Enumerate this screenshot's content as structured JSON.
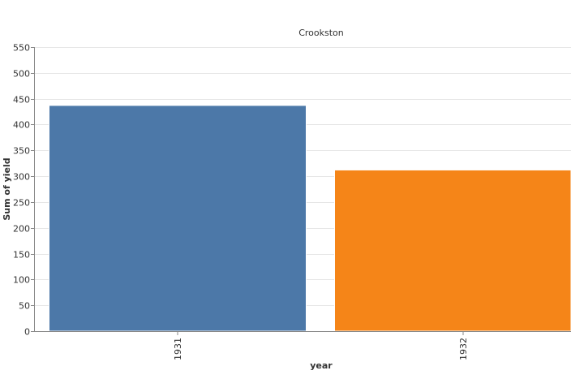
{
  "chart_data": {
    "type": "bar",
    "title": "Crookston",
    "xlabel": "year",
    "ylabel": "Sum of yield",
    "categories": [
      "1931",
      "1932"
    ],
    "values": [
      437,
      312
    ],
    "colors": [
      "#4c78a8",
      "#f58518"
    ],
    "ylim": [
      0,
      550
    ],
    "yticks": [
      "0",
      "50",
      "100",
      "150",
      "200",
      "250",
      "300",
      "350",
      "400",
      "450",
      "500",
      "550"
    ],
    "grid": true,
    "legend": "none"
  }
}
